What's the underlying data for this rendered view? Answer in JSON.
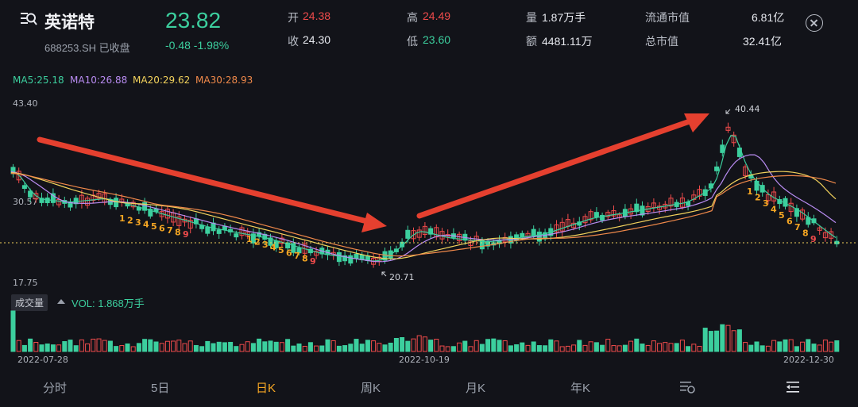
{
  "header": {
    "stock_name": "英诺特",
    "stock_code": "688253.SH 已收盘",
    "price": "23.82",
    "change": "-0.48 -1.98%",
    "quote": {
      "open_label": "开",
      "open": "24.38",
      "close_label": "收",
      "close": "24.30",
      "high_label": "高",
      "high": "24.49",
      "low_label": "低",
      "low": "23.60",
      "volume_label": "量",
      "volume": "1.87万手",
      "amount_label": "额",
      "amount": "4481.11万",
      "float_cap_label": "流通市值",
      "float_cap": "6.81亿",
      "total_cap_label": "总市值",
      "total_cap": "32.41亿"
    }
  },
  "ma_legend": {
    "ma5": "MA5:25.18",
    "ma10": "MA10:26.88",
    "ma20": "MA20:29.62",
    "ma30": "MA30:28.93"
  },
  "colors": {
    "up": "#ef4b4b",
    "down": "#3ccf9e",
    "ma5": "#3ccf9e",
    "ma10": "#b98cf2",
    "ma20": "#f2d25c",
    "ma30": "#f0894a",
    "active_tab": "#f5a623",
    "arrow": "#e5402f"
  },
  "chart": {
    "y_max_label": "43.40",
    "y_min_label": "17.75",
    "y_mid_label": "30.57",
    "high_mark": "40.44",
    "low_mark": "20.71",
    "dates": [
      "2022-07-28",
      "2022-10-19",
      "2022-12-30"
    ],
    "seq_down_1": [
      "1",
      "2",
      "3",
      "4",
      "5",
      "6",
      "7",
      "8",
      "9"
    ],
    "seq_down_2": [
      "1",
      "2",
      "3",
      "4",
      "5",
      "6",
      "7",
      "8",
      "9"
    ],
    "seq_down_3": [
      "1",
      "2",
      "3",
      "4",
      "5",
      "6",
      "7",
      "8",
      "9"
    ]
  },
  "volume": {
    "tag": "成交量",
    "text": "VOL: 1.868万手"
  },
  "tabs": [
    "分时",
    "5日",
    "日K",
    "周K",
    "月K",
    "年K"
  ],
  "tab_icons": [
    "indicator-settings-icon",
    "panel-list-icon"
  ]
}
